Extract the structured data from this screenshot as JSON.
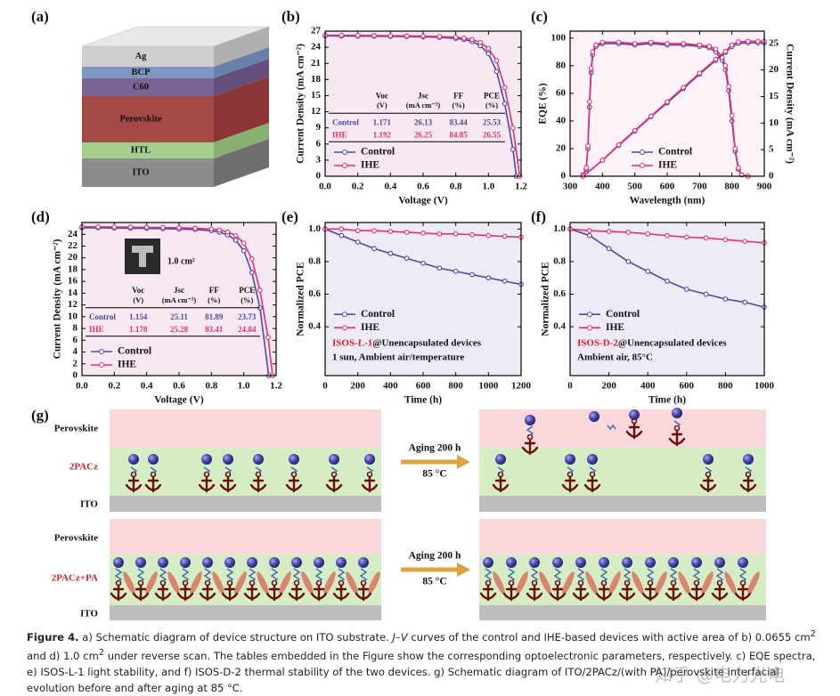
{
  "panel_labels": [
    "(a)",
    "(b)",
    "(c)",
    "(d)",
    "(e)",
    "(f)",
    "(g)"
  ],
  "device_layers": [
    "Ag",
    "BCP",
    "C60",
    "Perovskite",
    "HTL",
    "ITO"
  ],
  "chart_data": [
    {
      "type": "line",
      "xlabel": "Voltage (V)",
      "ylabel": "Current Density (mA cm⁻²)",
      "xlim": [
        0,
        1.2
      ],
      "ylim": [
        0,
        27
      ],
      "xticks": [
        {
          "value": 0,
          "label": "0.0"
        },
        0.2,
        0.4,
        0.6,
        0.8,
        {
          "value": 1,
          "label": "1.0"
        },
        1.2
      ],
      "yticks": [
        0,
        3,
        6,
        9,
        12,
        15,
        18,
        21,
        24,
        27
      ],
      "series": [
        {
          "name": "Control",
          "color": "#4b4ba3",
          "x": [
            0,
            0.1,
            0.2,
            0.3,
            0.4,
            0.5,
            0.6,
            0.7,
            0.8,
            0.85,
            0.9,
            0.95,
            1.0,
            1.05,
            1.1,
            1.15,
            1.171
          ],
          "values": [
            26.13,
            26.1,
            26.08,
            26.05,
            26.02,
            26.0,
            25.95,
            25.85,
            25.65,
            25.45,
            25.05,
            24.3,
            22.8,
            19.5,
            13.5,
            5,
            0
          ]
        },
        {
          "name": "IHE",
          "color": "#e0307a",
          "x": [
            0,
            0.1,
            0.2,
            0.3,
            0.4,
            0.5,
            0.6,
            0.7,
            0.8,
            0.85,
            0.9,
            0.95,
            1.0,
            1.05,
            1.1,
            1.15,
            1.192
          ],
          "values": [
            26.25,
            26.23,
            26.2,
            26.18,
            26.15,
            26.12,
            26.08,
            26.0,
            25.85,
            25.7,
            25.45,
            24.9,
            23.8,
            21.5,
            16.5,
            9,
            0
          ]
        }
      ],
      "legend": "lower left",
      "background": "#f8e8f2",
      "table": {
        "columns": [
          "Voc",
          "Jsc",
          "FF",
          "PCE"
        ],
        "units": [
          "(V)",
          "(mA cm⁻²)",
          "(%)",
          "(%)"
        ],
        "rows": [
          [
            "Control",
            "1.171",
            "26.13",
            "83.44",
            "25.53"
          ],
          [
            "IHE",
            "1.192",
            "26.25",
            "84.85",
            "26.55"
          ]
        ]
      }
    },
    {
      "type": "line",
      "xlabel": "Wavelength (nm)",
      "ylabel": "EQE (%)",
      "y2label": "Current Density (mA cm⁻²)",
      "xlim": [
        300,
        900
      ],
      "ylim": [
        0,
        105
      ],
      "y2lim": [
        0,
        27.3
      ],
      "xticks": [
        300,
        400,
        500,
        600,
        700,
        800,
        900
      ],
      "yticks": [
        0,
        20,
        40,
        60,
        80,
        100
      ],
      "y2ticks": [
        0,
        5,
        10,
        15,
        20,
        25
      ],
      "series": [
        {
          "name": "Control",
          "color": "#4b4ba3",
          "x": [
            340,
            350,
            355,
            360,
            365,
            370,
            380,
            400,
            450,
            500,
            550,
            600,
            650,
            700,
            730,
            750,
            770,
            780,
            790,
            800,
            810,
            820,
            830,
            850
          ],
          "values": [
            1,
            5,
            20,
            50,
            75,
            88,
            94,
            96,
            96,
            95,
            96,
            95,
            95,
            94,
            93,
            90,
            84,
            77,
            62,
            40,
            18,
            5,
            1,
            0
          ]
        },
        {
          "name": "IHE",
          "color": "#e0307a",
          "x": [
            340,
            350,
            355,
            360,
            365,
            370,
            380,
            400,
            450,
            500,
            550,
            600,
            650,
            700,
            730,
            750,
            770,
            780,
            790,
            800,
            810,
            820,
            830,
            850
          ],
          "values": [
            1,
            6,
            22,
            54,
            78,
            90,
            95,
            97,
            97,
            96,
            97,
            96,
            96,
            95,
            94,
            92,
            86,
            80,
            65,
            44,
            20,
            6,
            1,
            0
          ]
        },
        {
          "name": "Control",
          "color": "#4b4ba3",
          "axis": "y2",
          "x": [
            340,
            400,
            450,
            500,
            550,
            600,
            650,
            700,
            750,
            780,
            800,
            820,
            850,
            880,
            900
          ],
          "values": [
            0,
            3.0,
            5.8,
            8.5,
            11.2,
            13.8,
            16.5,
            19.2,
            21.8,
            23.3,
            24.4,
            25.0,
            25.1,
            25.1,
            25.1
          ]
        },
        {
          "name": "IHE",
          "color": "#e0307a",
          "axis": "y2",
          "x": [
            340,
            400,
            450,
            500,
            550,
            600,
            650,
            700,
            750,
            780,
            800,
            820,
            850,
            880,
            900
          ],
          "values": [
            0,
            3.0,
            5.9,
            8.6,
            11.3,
            14.0,
            16.7,
            19.4,
            22.0,
            23.5,
            24.7,
            25.3,
            25.4,
            25.4,
            25.4
          ]
        }
      ],
      "legend": "lower center",
      "background": "#fdf2f7"
    },
    {
      "type": "line",
      "xlabel": "Voltage (V)",
      "ylabel": "Current Density (mA cm⁻²)",
      "xlim": [
        0,
        1.2
      ],
      "ylim": [
        0,
        26
      ],
      "xticks": [
        {
          "value": 0,
          "label": "0.0"
        },
        0.2,
        0.4,
        0.6,
        0.8,
        {
          "value": 1,
          "label": "1.0"
        },
        1.2
      ],
      "yticks": [
        0,
        2,
        4,
        6,
        8,
        10,
        12,
        14,
        16,
        18,
        20,
        22,
        24
      ],
      "series": [
        {
          "name": "Control",
          "color": "#4b4ba3",
          "x": [
            0,
            0.1,
            0.2,
            0.3,
            0.4,
            0.5,
            0.6,
            0.7,
            0.8,
            0.85,
            0.9,
            0.95,
            1.0,
            1.05,
            1.1,
            1.154
          ],
          "values": [
            25.11,
            25.09,
            25.06,
            25.03,
            25.0,
            24.95,
            24.9,
            24.8,
            24.6,
            24.35,
            23.9,
            23.0,
            21.2,
            17.5,
            11.5,
            0
          ]
        },
        {
          "name": "IHE",
          "color": "#e0307a",
          "x": [
            0,
            0.1,
            0.2,
            0.3,
            0.4,
            0.5,
            0.6,
            0.7,
            0.8,
            0.85,
            0.9,
            0.95,
            1.0,
            1.05,
            1.1,
            1.15,
            1.178
          ],
          "values": [
            25.28,
            25.26,
            25.24,
            25.21,
            25.18,
            25.15,
            25.1,
            25.02,
            24.88,
            24.7,
            24.4,
            23.8,
            22.5,
            19.8,
            14.5,
            6.5,
            0
          ]
        }
      ],
      "legend": "lower left",
      "background": "#f8e8f2",
      "inset_label": "1.0 cm²",
      "table": {
        "columns": [
          "Voc",
          "Jsc",
          "FF",
          "PCE"
        ],
        "units": [
          "(V)",
          "(mA cm⁻²)",
          "(%)",
          "(%)"
        ],
        "rows": [
          [
            "Control",
            "1.154",
            "25.11",
            "81.89",
            "23.73"
          ],
          [
            "IHE",
            "1.178",
            "25.28",
            "83.41",
            "24.84"
          ]
        ]
      }
    },
    {
      "type": "line",
      "xlabel": "Time (h)",
      "ylabel": "Normalized PCE",
      "xlim": [
        0,
        1200
      ],
      "ylim": [
        0.1,
        1.04
      ],
      "xticks": [
        0,
        200,
        400,
        600,
        800,
        1000,
        1200
      ],
      "yticks": [
        0.4,
        0.6,
        0.8,
        {
          "value": 1,
          "label": "1.0"
        }
      ],
      "x": [
        0,
        100,
        200,
        300,
        400,
        500,
        600,
        700,
        800,
        900,
        1000,
        1100,
        1200
      ],
      "series": [
        {
          "name": "Control",
          "color": "#4b4ba3",
          "values": [
            1.0,
            0.96,
            0.92,
            0.88,
            0.85,
            0.82,
            0.79,
            0.76,
            0.74,
            0.72,
            0.7,
            0.68,
            0.66
          ]
        },
        {
          "name": "IHE",
          "color": "#e0307a",
          "values": [
            1.0,
            1.0,
            0.99,
            0.99,
            0.985,
            0.98,
            0.975,
            0.97,
            0.97,
            0.965,
            0.96,
            0.955,
            0.95
          ]
        }
      ],
      "legend": "center left",
      "background": "#eeeaf6",
      "annotation": [
        "ISOS-L-1",
        "@Unencapsulated devices",
        "1 sun, Ambient air/temperature"
      ],
      "annotation_color": "#d0202a"
    },
    {
      "type": "line",
      "xlabel": "Time (h)",
      "ylabel": "Normalized PCE",
      "xlim": [
        0,
        1000
      ],
      "ylim": [
        0.1,
        1.04
      ],
      "xticks": [
        0,
        200,
        400,
        600,
        800,
        1000
      ],
      "yticks": [
        0.4,
        0.6,
        0.8,
        {
          "value": 1,
          "label": "1.0"
        }
      ],
      "x": [
        0,
        100,
        200,
        300,
        400,
        500,
        600,
        700,
        800,
        900,
        1000
      ],
      "series": [
        {
          "name": "Control",
          "color": "#4b4ba3",
          "values": [
            1.0,
            0.96,
            0.88,
            0.8,
            0.74,
            0.68,
            0.63,
            0.6,
            0.57,
            0.55,
            0.52
          ]
        },
        {
          "name": "IHE",
          "color": "#e0307a",
          "values": [
            1.0,
            0.99,
            0.985,
            0.98,
            0.97,
            0.96,
            0.95,
            0.945,
            0.935,
            0.925,
            0.915
          ]
        }
      ],
      "legend": "center left",
      "background": "#eeeaf6",
      "annotation": [
        "ISOS-D-2",
        "@Unencapsulated devices",
        "Ambient air, 85°C"
      ],
      "annotation_color": "#d0202a"
    }
  ],
  "schematic": {
    "rows": [
      {
        "layers": [
          "Perovskite",
          "2PACz",
          "ITO"
        ],
        "arrow": [
          "Aging 200 h",
          "85 °C"
        ]
      },
      {
        "layers": [
          "Perovskite",
          "2PACz+PA",
          "ITO"
        ],
        "arrow": [
          "Aging 200 h",
          "85 °C"
        ]
      }
    ]
  },
  "caption": [
    "Figure 4.",
    "  a) Schematic diagram of device structure on ITO substrate. ",
    "J–V",
    " curves of the control and IHE-based devices with active area of b) 0.0655 cm",
    "2",
    " and d) 1.0 cm",
    "2",
    " under reverse scan. The tables embedded in the Figure show the corresponding optoelectronic parameters, respectively. c) EQE spectra, e) ISOS-L-1 light stability, and f) ISOS-D-2 thermal stability of the two devices. g) Schematic diagram of ITO/2PACz/(with PA)/perovskite interfacial evolution before and after aging at 85 °C."
  ],
  "watermark": "知乎 @电力光电"
}
